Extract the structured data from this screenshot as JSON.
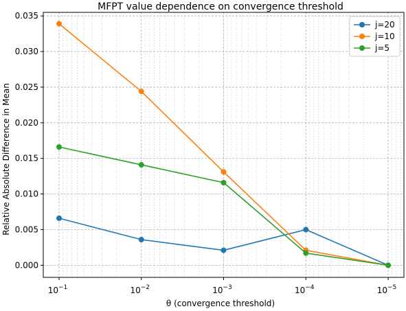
{
  "chart_data": {
    "type": "line",
    "title": "MFPT value dependence on convergence threshold",
    "xlabel": "θ (convergence threshold)",
    "ylabel": "Relative Absolute Difference in Mean",
    "x_scale": "log",
    "x_reversed": true,
    "x": [
      0.1,
      0.01,
      0.001,
      0.0001,
      1e-05
    ],
    "x_tick_labels": [
      {
        "base": "10",
        "exp": "−1"
      },
      {
        "base": "10",
        "exp": "−2"
      },
      {
        "base": "10",
        "exp": "−3"
      },
      {
        "base": "10",
        "exp": "−4"
      },
      {
        "base": "10",
        "exp": "−5"
      }
    ],
    "y_ticks": [
      "0.000",
      "0.005",
      "0.010",
      "0.015",
      "0.020",
      "0.025",
      "0.030",
      "0.035"
    ],
    "y_tick_values": [
      0,
      0.005,
      0.01,
      0.015,
      0.02,
      0.025,
      0.03,
      0.035
    ],
    "ylim": [
      -0.0017,
      0.0355
    ],
    "grid": true,
    "legend_position": "top-right",
    "series": [
      {
        "name": "j=20",
        "color": "#1f77b4",
        "values": [
          0.0066,
          0.0036,
          0.0021,
          0.005,
          0.0
        ]
      },
      {
        "name": "j=10",
        "color": "#ff7f0e",
        "values": [
          0.0339,
          0.0244,
          0.0131,
          0.0021,
          0.0
        ]
      },
      {
        "name": "j=5",
        "color": "#2ca02c",
        "values": [
          0.0166,
          0.0141,
          0.0116,
          0.0017,
          0.0
        ]
      }
    ]
  }
}
